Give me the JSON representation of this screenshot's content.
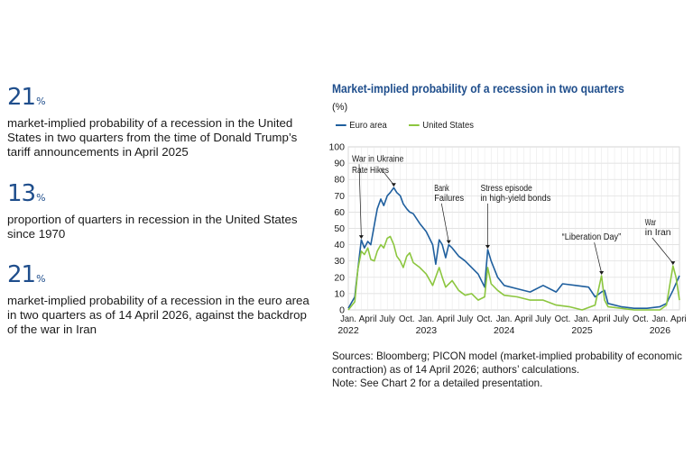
{
  "stats": [
    {
      "value": "21",
      "unit": "%",
      "text": "market-implied probability of a recession in the United States in two quarters from the time of Donald Trump’s tariff announcements in April 2025"
    },
    {
      "value": "13",
      "unit": "%",
      "text": "proportion of quarters in recession in the United States since 1970"
    },
    {
      "value": "21",
      "unit": "%",
      "text": "market-implied probability of a recession in the euro area in two quarters as of 14 April 2026, against the backdrop of the war in Iran"
    }
  ],
  "colors": {
    "euro": "#1f5f9e",
    "us": "#8cc63f",
    "accent": "#1f4e8c",
    "grid": "#d9d9d9"
  },
  "chart_data": {
    "type": "line",
    "title": "Market-implied probability of a recession in two quarters",
    "ylabel": "(%)",
    "ylim": [
      0,
      100
    ],
    "yticks": [
      0,
      10,
      20,
      30,
      40,
      50,
      60,
      70,
      80,
      90,
      100
    ],
    "x_range": [
      "2022-01",
      "2026-04"
    ],
    "x_tick_labels": [
      "Jan.",
      "April",
      "July",
      "Oct.",
      "Jan.",
      "April",
      "July",
      "Oct.",
      "Jan.",
      "April",
      "July",
      "Oct.",
      "Jan.",
      "April",
      "July",
      "Oct.",
      "Jan.",
      "April"
    ],
    "x_year_labels": [
      {
        "label": "2022",
        "at": "2022-01"
      },
      {
        "label": "2023",
        "at": "2023-01"
      },
      {
        "label": "2024",
        "at": "2024-01"
      },
      {
        "label": "2025",
        "at": "2025-01"
      },
      {
        "label": "2026",
        "at": "2026-01"
      }
    ],
    "grid": true,
    "legend_position": "top-left",
    "series": [
      {
        "name": "Euro area",
        "color_key": "euro",
        "points": [
          [
            "2022-01",
            1
          ],
          [
            "2022-02",
            8
          ],
          [
            "2022-02-15",
            25
          ],
          [
            "2022-03",
            43
          ],
          [
            "2022-03-15",
            38
          ],
          [
            "2022-04",
            42
          ],
          [
            "2022-04-15",
            40
          ],
          [
            "2022-05",
            52
          ],
          [
            "2022-05-15",
            62
          ],
          [
            "2022-06",
            68
          ],
          [
            "2022-06-15",
            64
          ],
          [
            "2022-07",
            70
          ],
          [
            "2022-07-15",
            72
          ],
          [
            "2022-08",
            75
          ],
          [
            "2022-08-15",
            72
          ],
          [
            "2022-09",
            70
          ],
          [
            "2022-09-15",
            65
          ],
          [
            "2022-10",
            62
          ],
          [
            "2022-10-15",
            60
          ],
          [
            "2022-11",
            59
          ],
          [
            "2022-12",
            53
          ],
          [
            "2023-01",
            48
          ],
          [
            "2023-02",
            40
          ],
          [
            "2023-02-15",
            28
          ],
          [
            "2023-03",
            43
          ],
          [
            "2023-03-15",
            40
          ],
          [
            "2023-04",
            32
          ],
          [
            "2023-04-15",
            40
          ],
          [
            "2023-05",
            38
          ],
          [
            "2023-06",
            33
          ],
          [
            "2023-07",
            30
          ],
          [
            "2023-08",
            26
          ],
          [
            "2023-09",
            22
          ],
          [
            "2023-10",
            14
          ],
          [
            "2023-10-15",
            37
          ],
          [
            "2023-11",
            30
          ],
          [
            "2023-12",
            20
          ],
          [
            "2024-01",
            15
          ],
          [
            "2024-03",
            13
          ],
          [
            "2024-05",
            11
          ],
          [
            "2024-07",
            15
          ],
          [
            "2024-09",
            11
          ],
          [
            "2024-10",
            16
          ],
          [
            "2024-12",
            15
          ],
          [
            "2025-02",
            14
          ],
          [
            "2025-03",
            8
          ],
          [
            "2025-04",
            11
          ],
          [
            "2025-04-15",
            12
          ],
          [
            "2025-05",
            4
          ],
          [
            "2025-07",
            2
          ],
          [
            "2025-09",
            1
          ],
          [
            "2025-11",
            1
          ],
          [
            "2026-01",
            2
          ],
          [
            "2026-02",
            4
          ],
          [
            "2026-03",
            12
          ],
          [
            "2026-04",
            21
          ]
        ]
      },
      {
        "name": "United States",
        "color_key": "us",
        "points": [
          [
            "2022-01",
            0
          ],
          [
            "2022-02",
            5
          ],
          [
            "2022-02-15",
            25
          ],
          [
            "2022-03",
            36
          ],
          [
            "2022-03-15",
            34
          ],
          [
            "2022-04",
            38
          ],
          [
            "2022-04-15",
            31
          ],
          [
            "2022-05",
            30
          ],
          [
            "2022-05-15",
            36
          ],
          [
            "2022-06",
            40
          ],
          [
            "2022-06-15",
            38
          ],
          [
            "2022-07",
            44
          ],
          [
            "2022-07-15",
            45
          ],
          [
            "2022-08",
            40
          ],
          [
            "2022-08-15",
            33
          ],
          [
            "2022-09",
            30
          ],
          [
            "2022-09-15",
            26
          ],
          [
            "2022-10",
            33
          ],
          [
            "2022-10-15",
            35
          ],
          [
            "2022-11",
            29
          ],
          [
            "2022-12",
            26
          ],
          [
            "2023-01",
            22
          ],
          [
            "2023-02",
            15
          ],
          [
            "2023-03",
            26
          ],
          [
            "2023-03-15",
            20
          ],
          [
            "2023-04",
            14
          ],
          [
            "2023-05",
            18
          ],
          [
            "2023-06",
            12
          ],
          [
            "2023-07",
            9
          ],
          [
            "2023-08",
            10
          ],
          [
            "2023-09",
            6
          ],
          [
            "2023-10",
            8
          ],
          [
            "2023-10-15",
            26
          ],
          [
            "2023-11",
            16
          ],
          [
            "2023-12",
            12
          ],
          [
            "2024-01",
            9
          ],
          [
            "2024-03",
            8
          ],
          [
            "2024-05",
            6
          ],
          [
            "2024-07",
            6
          ],
          [
            "2024-09",
            3
          ],
          [
            "2024-11",
            2
          ],
          [
            "2025-01",
            0
          ],
          [
            "2025-03",
            3
          ],
          [
            "2025-04",
            21
          ],
          [
            "2025-04-15",
            6
          ],
          [
            "2025-05",
            2
          ],
          [
            "2025-07",
            1
          ],
          [
            "2025-09",
            0
          ],
          [
            "2025-11",
            0
          ],
          [
            "2026-01",
            0
          ],
          [
            "2026-02",
            3
          ],
          [
            "2026-03",
            27
          ],
          [
            "2026-03-15",
            20
          ],
          [
            "2026-04",
            6
          ]
        ]
      }
    ],
    "annotations": [
      {
        "lines": [
          "War in Ukraine"
        ],
        "at": [
          "2022-03",
          43
        ]
      },
      {
        "lines": [
          "Rate Hikes"
        ],
        "at": [
          "2022-08",
          75
        ]
      },
      {
        "lines": [
          "Bank",
          "Failures"
        ],
        "at": [
          "2023-04-15",
          40
        ]
      },
      {
        "lines": [
          "Stress episode",
          "in high-yield bonds"
        ],
        "at": [
          "2023-10-15",
          37
        ]
      },
      {
        "lines": [
          "“Liberation Day”"
        ],
        "at": [
          "2025-04",
          21
        ]
      },
      {
        "lines": [
          "War",
          "in Iran"
        ],
        "at": [
          "2026-03",
          27
        ]
      }
    ]
  },
  "notes": {
    "sources": "Sources: Bloomberg; PICON model (market-implied probability of economic contraction) as of 14 April 2026; authors’ calculations.",
    "note": "Note: See Chart 2 for a detailed presentation."
  }
}
